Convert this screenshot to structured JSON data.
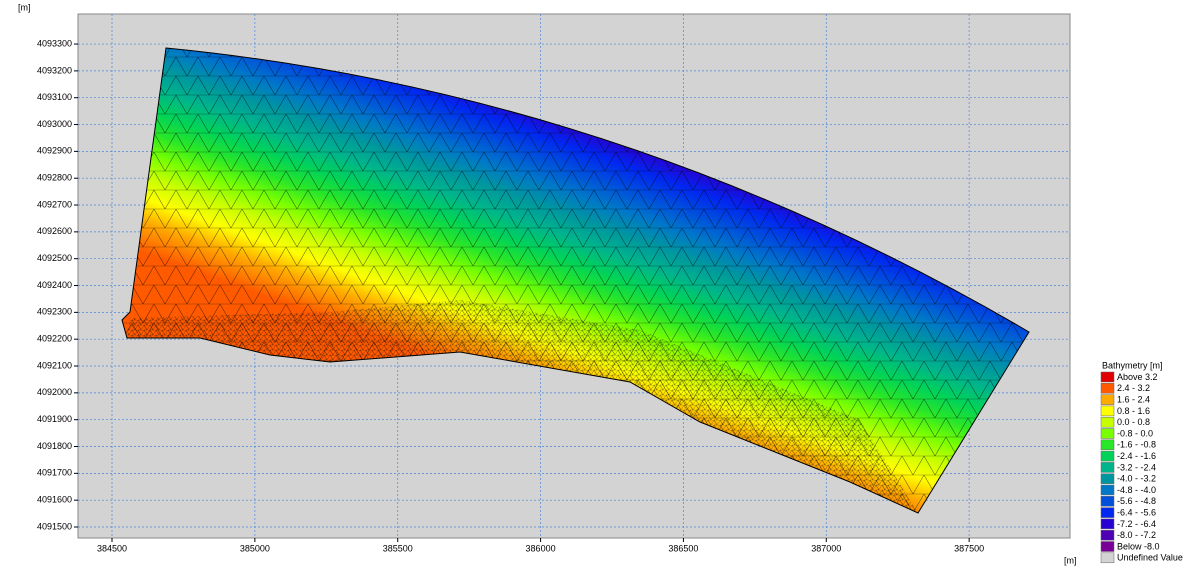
{
  "chart_data": {
    "type": "mesh",
    "x_unit": "[m]",
    "y_unit": "[m]",
    "xlim": [
      384381,
      387853
    ],
    "ylim": [
      4091459,
      4093412
    ],
    "xticks": [
      384500,
      385000,
      385500,
      386000,
      386500,
      387000,
      387500
    ],
    "yticks": [
      4091500,
      4091600,
      4091700,
      4091800,
      4091900,
      4092000,
      4092100,
      4092200,
      4092300,
      4092400,
      4092500,
      4092600,
      4092700,
      4092800,
      4092900,
      4093000,
      4093100,
      4093200,
      4093300
    ],
    "grid": true,
    "legend": {
      "title": "Bathymetry [m]",
      "entries": [
        {
          "label": "Above  3.2",
          "color": "#e00000"
        },
        {
          "label": "2.4 -  3.2",
          "color": "#ff5a00"
        },
        {
          "label": "1.6 -  2.4",
          "color": "#ffaa00"
        },
        {
          "label": "0.8 -  1.6",
          "color": "#ffff00"
        },
        {
          "label": "0.0 -  0.8",
          "color": "#c8ff00"
        },
        {
          "label": "-0.8 -  0.0",
          "color": "#78ff00"
        },
        {
          "label": "-1.6 - -0.8",
          "color": "#28e628"
        },
        {
          "label": "-2.4 - -1.6",
          "color": "#00d25a"
        },
        {
          "label": "-3.2 - -2.4",
          "color": "#00b48c"
        },
        {
          "label": "-4.0 - -3.2",
          "color": "#0096a0"
        },
        {
          "label": "-4.8 - -4.0",
          "color": "#0078c8"
        },
        {
          "label": "-5.6 - -4.8",
          "color": "#0050dc"
        },
        {
          "label": "-6.4 - -5.6",
          "color": "#0028f0"
        },
        {
          "label": "-7.2 - -6.4",
          "color": "#2800d2"
        },
        {
          "label": "-8.0 - -7.2",
          "color": "#5000b4"
        },
        {
          "label": "Below -8.0",
          "color": "#780096"
        },
        {
          "label": "Undefined Value",
          "color": "#d3d3d3"
        }
      ]
    }
  }
}
